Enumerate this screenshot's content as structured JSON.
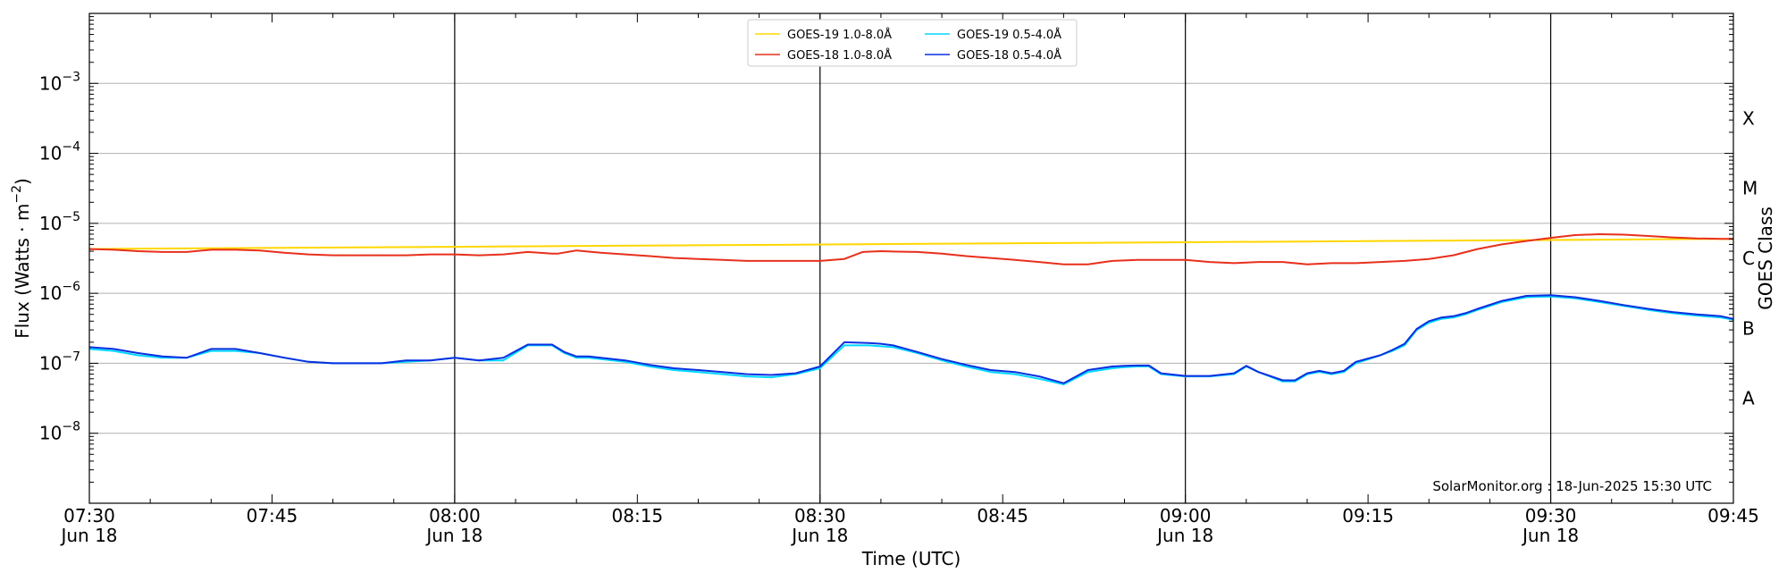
{
  "chart_data": {
    "type": "line",
    "xlabel": "Time (UTC)",
    "ylabel": "Flux (Watts · m",
    "ylabel_sup": "−2",
    "ylabel_close": ")",
    "right_label": "GOES Class",
    "credit": "SolarMonitor.org : 18-Jun-2025 15:30 UTC",
    "x_range_minutes": [
      0,
      135
    ],
    "y_log_range": [
      -9,
      -2
    ],
    "grid": "horizontal",
    "legend_position": "top-center",
    "x_ticks": [
      {
        "minute": 0,
        "label": "07:30",
        "sub": "Jun 18"
      },
      {
        "minute": 15,
        "label": "07:45",
        "sub": ""
      },
      {
        "minute": 30,
        "label": "08:00",
        "sub": "Jun 18"
      },
      {
        "minute": 45,
        "label": "08:15",
        "sub": ""
      },
      {
        "minute": 60,
        "label": "08:30",
        "sub": "Jun 18"
      },
      {
        "minute": 75,
        "label": "08:45",
        "sub": ""
      },
      {
        "minute": 90,
        "label": "09:00",
        "sub": "Jun 18"
      },
      {
        "minute": 105,
        "label": "09:15",
        "sub": ""
      },
      {
        "minute": 120,
        "label": "09:30",
        "sub": "Jun 18"
      },
      {
        "minute": 135,
        "label": "09:45",
        "sub": ""
      }
    ],
    "vlines_minutes": [
      30,
      60,
      90,
      120
    ],
    "y_ticks": [
      {
        "exp": -8,
        "label": "10",
        "sup": "−8"
      },
      {
        "exp": -7,
        "label": "10",
        "sup": "−7"
      },
      {
        "exp": -6,
        "label": "10",
        "sup": "−6"
      },
      {
        "exp": -5,
        "label": "10",
        "sup": "−5"
      },
      {
        "exp": -4,
        "label": "10",
        "sup": "−4"
      },
      {
        "exp": -3,
        "label": "10",
        "sup": "−3"
      }
    ],
    "classes": [
      {
        "label": "A",
        "exp": -7.5
      },
      {
        "label": "B",
        "exp": -6.5
      },
      {
        "label": "C",
        "exp": -5.5
      },
      {
        "label": "M",
        "exp": -4.5
      },
      {
        "label": "X",
        "exp": -3.5
      }
    ],
    "series": [
      {
        "name": "GOES-19 1.0-8.0Å",
        "color": "#ffd700",
        "x": [
          0,
          135
        ],
        "y": [
          4.3e-06,
          6e-06
        ]
      },
      {
        "name": "GOES-18 1.0-8.0Å",
        "color": "#e8301c",
        "x": [
          0,
          2,
          4,
          6,
          8,
          10,
          12,
          14,
          16,
          18,
          20,
          22,
          24,
          26,
          28,
          30,
          32,
          34,
          36,
          38,
          38.5,
          40,
          42,
          44,
          46,
          48,
          50,
          52,
          54,
          56,
          58,
          60,
          62,
          63.5,
          65,
          66,
          68,
          70,
          72,
          74,
          76,
          78,
          80,
          82,
          84,
          86,
          88,
          90,
          92,
          94,
          96,
          98,
          100,
          102,
          104,
          106,
          108,
          110,
          112,
          114,
          116,
          118,
          120,
          122,
          124,
          126,
          128,
          130,
          132,
          134,
          135
        ],
        "y": [
          4.3e-06,
          4.2e-06,
          4e-06,
          3.9e-06,
          3.9e-06,
          4.2e-06,
          4.2e-06,
          4.1e-06,
          3.8e-06,
          3.6e-06,
          3.5e-06,
          3.5e-06,
          3.5e-06,
          3.5e-06,
          3.6e-06,
          3.6e-06,
          3.5e-06,
          3.6e-06,
          3.9e-06,
          3.7e-06,
          3.7e-06,
          4.1e-06,
          3.8e-06,
          3.6e-06,
          3.4e-06,
          3.2e-06,
          3.1e-06,
          3e-06,
          2.9e-06,
          2.9e-06,
          2.9e-06,
          2.9e-06,
          3.1e-06,
          3.9e-06,
          4e-06,
          3.95e-06,
          3.9e-06,
          3.7e-06,
          3.4e-06,
          3.2e-06,
          3e-06,
          2.8e-06,
          2.6e-06,
          2.6e-06,
          2.9e-06,
          3e-06,
          3e-06,
          3e-06,
          2.8e-06,
          2.7e-06,
          2.8e-06,
          2.8e-06,
          2.6e-06,
          2.7e-06,
          2.7e-06,
          2.8e-06,
          2.9e-06,
          3.1e-06,
          3.5e-06,
          4.3e-06,
          5e-06,
          5.6e-06,
          6.2e-06,
          6.8e-06,
          7e-06,
          6.9e-06,
          6.6e-06,
          6.3e-06,
          6.1e-06,
          6e-06,
          6e-06
        ]
      },
      {
        "name": "GOES-19 0.5-4.0Å",
        "color": "#00d8ff",
        "x": [
          0,
          2,
          4,
          6,
          8,
          10,
          12,
          14,
          16,
          18,
          20,
          22,
          24,
          26,
          28,
          30,
          32,
          34,
          36,
          38,
          39,
          40,
          41,
          42,
          44,
          46,
          48,
          50,
          52,
          54,
          56,
          58,
          60,
          62,
          64,
          65,
          66,
          68,
          70,
          72,
          74,
          76,
          78,
          80,
          82,
          84,
          85,
          86,
          87,
          88,
          90,
          92,
          94,
          95,
          96,
          98,
          99,
          100,
          101,
          102,
          103,
          104,
          106,
          107,
          108,
          109,
          110,
          111,
          112,
          113,
          114,
          116,
          118,
          120,
          122,
          124,
          126,
          128,
          130,
          132,
          134,
          135
        ],
        "y": [
          1.6e-07,
          1.5e-07,
          1.3e-07,
          1.2e-07,
          1.2e-07,
          1.5e-07,
          1.5e-07,
          1.4e-07,
          1.2e-07,
          1.05e-07,
          1e-07,
          1e-07,
          1e-07,
          1.05e-07,
          1.1e-07,
          1.2e-07,
          1.1e-07,
          1.1e-07,
          1.8e-07,
          1.8e-07,
          1.4e-07,
          1.2e-07,
          1.2e-07,
          1.15e-07,
          1.05e-07,
          9e-08,
          8e-08,
          7.5e-08,
          7e-08,
          6.5e-08,
          6.3e-08,
          7e-08,
          8.5e-08,
          1.8e-07,
          1.8e-07,
          1.75e-07,
          1.7e-07,
          1.4e-07,
          1.1e-07,
          9e-08,
          7.5e-08,
          7e-08,
          6e-08,
          5e-08,
          7.5e-08,
          8.5e-08,
          8.8e-08,
          9e-08,
          9e-08,
          7e-08,
          6.5e-08,
          6.5e-08,
          7e-08,
          9e-08,
          7.5e-08,
          5.5e-08,
          5.5e-08,
          7e-08,
          7.5e-08,
          7e-08,
          7.5e-08,
          1e-07,
          1.3e-07,
          1.5e-07,
          1.8e-07,
          3e-07,
          3.8e-07,
          4.3e-07,
          4.5e-07,
          5e-07,
          5.8e-07,
          7.5e-07,
          8.8e-07,
          9e-07,
          8.5e-07,
          7.5e-07,
          6.6e-07,
          5.8e-07,
          5.2e-07,
          4.8e-07,
          4.5e-07,
          4.2e-07
        ]
      },
      {
        "name": "GOES-18 0.5-4.0Å",
        "color": "#0a2fe0",
        "x": [
          0,
          2,
          4,
          6,
          8,
          10,
          12,
          14,
          16,
          18,
          20,
          22,
          24,
          26,
          28,
          30,
          32,
          34,
          36,
          38,
          39,
          40,
          41,
          42,
          44,
          46,
          48,
          50,
          52,
          54,
          56,
          58,
          60,
          62,
          64,
          65,
          66,
          68,
          70,
          72,
          74,
          76,
          78,
          80,
          82,
          84,
          85,
          86,
          87,
          88,
          90,
          92,
          94,
          95,
          96,
          98,
          99,
          100,
          101,
          102,
          103,
          104,
          106,
          107,
          108,
          109,
          110,
          111,
          112,
          113,
          114,
          116,
          118,
          120,
          122,
          124,
          126,
          128,
          130,
          132,
          134,
          135
        ],
        "y": [
          1.7e-07,
          1.6e-07,
          1.4e-07,
          1.25e-07,
          1.2e-07,
          1.6e-07,
          1.6e-07,
          1.4e-07,
          1.2e-07,
          1.05e-07,
          1e-07,
          1e-07,
          1e-07,
          1.1e-07,
          1.1e-07,
          1.2e-07,
          1.1e-07,
          1.2e-07,
          1.85e-07,
          1.85e-07,
          1.45e-07,
          1.25e-07,
          1.25e-07,
          1.2e-07,
          1.1e-07,
          9.5e-08,
          8.5e-08,
          8e-08,
          7.5e-08,
          7e-08,
          6.8e-08,
          7.2e-08,
          9e-08,
          2e-07,
          1.95e-07,
          1.9e-07,
          1.8e-07,
          1.45e-07,
          1.15e-07,
          9.5e-08,
          8e-08,
          7.5e-08,
          6.5e-08,
          5.2e-08,
          8e-08,
          9e-08,
          9.2e-08,
          9.3e-08,
          9.3e-08,
          7.2e-08,
          6.6e-08,
          6.6e-08,
          7.2e-08,
          9.2e-08,
          7.5e-08,
          5.7e-08,
          5.7e-08,
          7.2e-08,
          7.8e-08,
          7.2e-08,
          7.8e-08,
          1.05e-07,
          1.3e-07,
          1.55e-07,
          1.9e-07,
          3.1e-07,
          4e-07,
          4.5e-07,
          4.7e-07,
          5.2e-07,
          6e-07,
          7.8e-07,
          9.2e-07,
          9.4e-07,
          8.8e-07,
          7.8e-07,
          6.8e-07,
          6e-07,
          5.4e-07,
          5e-07,
          4.7e-07,
          4.3e-07
        ]
      }
    ]
  }
}
